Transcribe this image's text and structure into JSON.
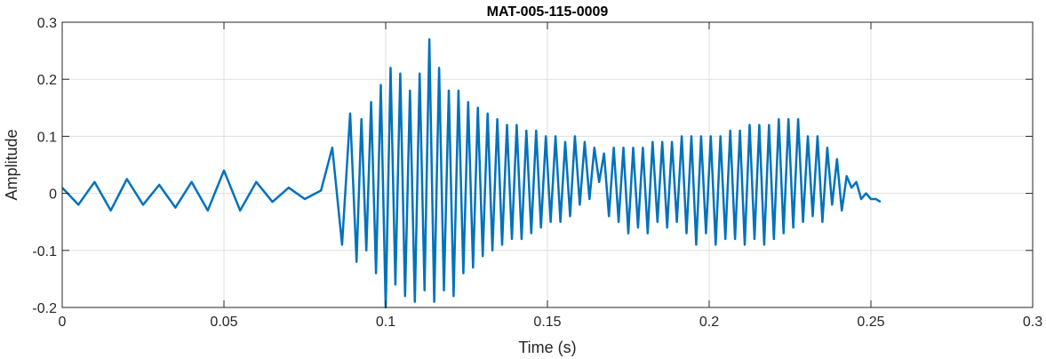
{
  "chart_data": {
    "type": "line",
    "title": "MAT-005-115-0009",
    "xlabel": "Time (s)",
    "ylabel": "Amplitude",
    "xlim": [
      0,
      0.3
    ],
    "ylim": [
      -0.2,
      0.3
    ],
    "xticks": [
      0,
      0.05,
      0.1,
      0.15,
      0.2,
      0.25,
      0.3
    ],
    "xtick_labels": [
      "0",
      "0.05",
      "0.1",
      "0.15",
      "0.2",
      "0.25",
      "0.3"
    ],
    "yticks": [
      -0.2,
      -0.1,
      0,
      0.1,
      0.2,
      0.3
    ],
    "ytick_labels": [
      "-0.2",
      "-0.1",
      "0",
      "0.1",
      "0.2",
      "0.3"
    ],
    "grid": true,
    "series_color": "#0072BD",
    "series": [
      {
        "x": [
          0,
          0.005,
          0.01,
          0.015,
          0.02,
          0.025,
          0.03,
          0.035,
          0.04,
          0.045,
          0.05,
          0.055,
          0.06,
          0.065,
          0.07,
          0.075,
          0.08,
          0.0835,
          0.0865,
          0.089,
          0.091,
          0.0925,
          0.094,
          0.0955,
          0.097,
          0.0985,
          0.1,
          0.1015,
          0.103,
          0.1045,
          0.106,
          0.1075,
          0.109,
          0.1105,
          0.112,
          0.1135,
          0.115,
          0.1165,
          0.118,
          0.1195,
          0.121,
          0.1225,
          0.124,
          0.1255,
          0.127,
          0.1285,
          0.13,
          0.1315,
          0.133,
          0.1345,
          0.136,
          0.1375,
          0.139,
          0.1405,
          0.142,
          0.1435,
          0.145,
          0.1465,
          0.148,
          0.1495,
          0.151,
          0.1525,
          0.154,
          0.1555,
          0.157,
          0.1585,
          0.16,
          0.1615,
          0.163,
          0.1645,
          0.166,
          0.1675,
          0.169,
          0.1705,
          0.172,
          0.1735,
          0.175,
          0.1765,
          0.178,
          0.1795,
          0.181,
          0.1825,
          0.184,
          0.1855,
          0.187,
          0.1885,
          0.19,
          0.1915,
          0.193,
          0.1945,
          0.196,
          0.1975,
          0.199,
          0.2005,
          0.202,
          0.2035,
          0.205,
          0.2065,
          0.208,
          0.2095,
          0.211,
          0.2125,
          0.214,
          0.2155,
          0.217,
          0.2185,
          0.22,
          0.2215,
          0.223,
          0.2245,
          0.226,
          0.2275,
          0.229,
          0.2305,
          0.232,
          0.2335,
          0.235,
          0.2365,
          0.238,
          0.2395,
          0.241,
          0.2425,
          0.244,
          0.2455,
          0.247,
          0.2485,
          0.25,
          0.2515,
          0.253
        ],
        "y": [
          0.01,
          -0.02,
          0.02,
          -0.03,
          0.025,
          -0.02,
          0.015,
          -0.025,
          0.02,
          -0.03,
          0.04,
          -0.03,
          0.02,
          -0.015,
          0.01,
          -0.01,
          0.005,
          0.08,
          -0.09,
          0.14,
          -0.12,
          0.13,
          -0.1,
          0.16,
          -0.14,
          0.19,
          -0.2,
          0.22,
          -0.16,
          0.21,
          -0.18,
          0.18,
          -0.19,
          0.21,
          -0.17,
          0.27,
          -0.19,
          0.22,
          -0.17,
          0.18,
          -0.18,
          0.18,
          -0.14,
          0.16,
          -0.13,
          0.15,
          -0.11,
          0.14,
          -0.1,
          0.13,
          -0.09,
          0.12,
          -0.08,
          0.12,
          -0.08,
          0.11,
          -0.07,
          0.11,
          -0.06,
          0.1,
          -0.05,
          0.1,
          -0.05,
          0.09,
          -0.04,
          0.1,
          -0.02,
          0.09,
          -0.01,
          0.08,
          0.02,
          0.07,
          -0.04,
          0.08,
          -0.05,
          0.08,
          -0.07,
          0.08,
          -0.06,
          0.08,
          -0.07,
          0.09,
          -0.05,
          0.09,
          -0.06,
          0.09,
          -0.05,
          0.1,
          -0.07,
          0.1,
          -0.09,
          0.1,
          -0.07,
          0.1,
          -0.09,
          0.1,
          -0.08,
          0.11,
          -0.08,
          0.11,
          -0.09,
          0.12,
          -0.08,
          0.12,
          -0.09,
          0.12,
          -0.08,
          0.13,
          -0.07,
          0.13,
          -0.06,
          0.13,
          -0.05,
          0.1,
          -0.04,
          0.1,
          -0.05,
          0.08,
          -0.02,
          0.06,
          -0.03,
          0.03,
          0.01,
          0.02,
          -0.01,
          0.0,
          -0.01,
          -0.01,
          -0.015
        ]
      }
    ]
  }
}
